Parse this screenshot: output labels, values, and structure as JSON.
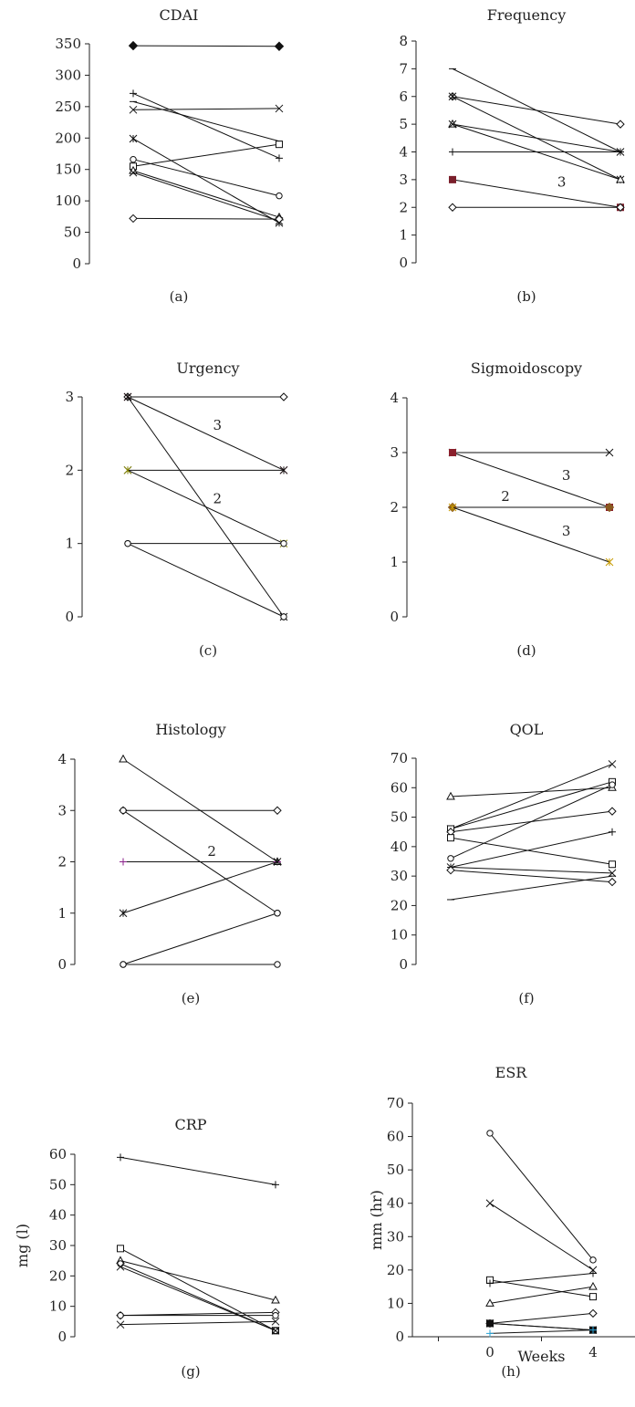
{
  "chart_data": [
    {
      "id": "a",
      "type": "line",
      "title": "CDAI",
      "caption": "(a)",
      "ylim": [
        0,
        350
      ],
      "yticks": [
        "0",
        "50",
        "100",
        "150",
        "200",
        "250",
        "300",
        "350"
      ],
      "x": [
        0,
        4
      ],
      "series": [
        {
          "marker": "diamond-filled",
          "values": [
            347,
            346
          ]
        },
        {
          "marker": "plus",
          "values": [
            271,
            168
          ]
        },
        {
          "marker": "x",
          "values": [
            245,
            247
          ]
        },
        {
          "marker": "dash",
          "values": [
            258,
            195
          ]
        },
        {
          "marker": "asterisk",
          "values": [
            199,
            65
          ]
        },
        {
          "marker": "circle",
          "values": [
            166,
            108
          ]
        },
        {
          "marker": "square",
          "values": [
            155,
            190
          ]
        },
        {
          "marker": "triangle",
          "values": [
            148,
            74
          ]
        },
        {
          "marker": "x",
          "values": [
            145,
            68
          ]
        },
        {
          "marker": "diamond",
          "values": [
            72,
            71
          ]
        }
      ]
    },
    {
      "id": "b",
      "type": "line",
      "title": "Frequency",
      "caption": "(b)",
      "ylim": [
        0,
        8
      ],
      "yticks": [
        "0",
        "1",
        "2",
        "3",
        "4",
        "5",
        "6",
        "7",
        "8"
      ],
      "x": [
        0,
        4
      ],
      "annotations": [
        {
          "text": "3",
          "x": 2.6,
          "y": 2.75
        }
      ],
      "series": [
        {
          "marker": "dash",
          "values": [
            7,
            4
          ]
        },
        {
          "marker": "diamond",
          "values": [
            6,
            5
          ]
        },
        {
          "marker": "asterisk",
          "values": [
            6,
            3
          ]
        },
        {
          "marker": "triangle",
          "values": [
            5,
            3
          ]
        },
        {
          "marker": "x",
          "values": [
            5,
            4
          ]
        },
        {
          "marker": "plus",
          "values": [
            4,
            4
          ]
        },
        {
          "marker": "square-filled",
          "color": "#7a1f2b",
          "values": [
            3,
            2
          ]
        },
        {
          "marker": "diamond",
          "values": [
            2,
            2
          ]
        }
      ]
    },
    {
      "id": "c",
      "type": "line",
      "title": "Urgency",
      "caption": "(c)",
      "ylim": [
        0,
        3
      ],
      "yticks": [
        "0",
        "1",
        "2",
        "3"
      ],
      "x": [
        0,
        4
      ],
      "annotations": [
        {
          "text": "3",
          "x": 2.3,
          "y": 2.55
        },
        {
          "text": "2",
          "x": 2.3,
          "y": 1.55
        }
      ],
      "series": [
        {
          "marker": "diamond",
          "values": [
            3,
            3
          ]
        },
        {
          "marker": "asterisk",
          "color": "#8a1f3b",
          "values": [
            3,
            2
          ]
        },
        {
          "marker": "asterisk",
          "values": [
            3,
            0
          ]
        },
        {
          "marker": "asterisk",
          "values": [
            2,
            2
          ]
        },
        {
          "marker": "asterisk",
          "color": "#8a8a00",
          "values": [
            2,
            1
          ]
        },
        {
          "marker": "circle",
          "values": [
            1,
            1
          ]
        },
        {
          "marker": "circle",
          "values": [
            1,
            0
          ]
        }
      ]
    },
    {
      "id": "d",
      "type": "line",
      "title": "Sigmoidoscopy",
      "caption": "(d)",
      "ylim": [
        0,
        4
      ],
      "yticks": [
        "0",
        "1",
        "2",
        "3",
        "4"
      ],
      "x": [
        0,
        4
      ],
      "annotations": [
        {
          "text": "3",
          "x": 2.9,
          "y": 2.5
        },
        {
          "text": "2",
          "x": 1.35,
          "y": 2.12
        },
        {
          "text": "3",
          "x": 2.9,
          "y": 1.48
        }
      ],
      "series": [
        {
          "marker": "x",
          "values": [
            3,
            3
          ]
        },
        {
          "marker": "square-filled",
          "color": "#8a1f2b",
          "values": [
            3,
            2
          ]
        },
        {
          "marker": "diamond-filled",
          "color": "#8a5a20",
          "values": [
            2,
            2
          ]
        },
        {
          "marker": "asterisk",
          "color": "#c79a00",
          "values": [
            2,
            1
          ]
        }
      ]
    },
    {
      "id": "e",
      "type": "line",
      "title": "Histology",
      "caption": "(e)",
      "ylim": [
        0,
        4
      ],
      "yticks": [
        "0",
        "1",
        "2",
        "3",
        "4"
      ],
      "x": [
        0,
        4
      ],
      "annotations": [
        {
          "text": "2",
          "x": 2.3,
          "y": 2.12
        }
      ],
      "series": [
        {
          "marker": "triangle",
          "values": [
            4,
            2
          ]
        },
        {
          "marker": "diamond",
          "values": [
            3,
            3
          ]
        },
        {
          "marker": "circle",
          "values": [
            3,
            1
          ]
        },
        {
          "marker": "plus",
          "color": "#8a1f8a",
          "values": [
            2,
            2
          ]
        },
        {
          "marker": "asterisk",
          "values": [
            1,
            2
          ]
        },
        {
          "marker": "circle",
          "values": [
            0,
            1
          ]
        },
        {
          "marker": "circle",
          "values": [
            0,
            0
          ]
        }
      ]
    },
    {
      "id": "f",
      "type": "line",
      "title": "QOL",
      "caption": "(f)",
      "ylim": [
        0,
        70
      ],
      "yticks": [
        "0",
        "10",
        "20",
        "30",
        "40",
        "50",
        "60",
        "70"
      ],
      "x": [
        0,
        4
      ],
      "series": [
        {
          "marker": "triangle",
          "values": [
            57,
            60
          ]
        },
        {
          "marker": "x",
          "values": [
            46,
            68
          ]
        },
        {
          "marker": "square",
          "values": [
            46,
            62
          ]
        },
        {
          "marker": "diamond",
          "values": [
            45,
            52
          ]
        },
        {
          "marker": "square",
          "values": [
            43,
            34
          ]
        },
        {
          "marker": "circle",
          "values": [
            36,
            61
          ]
        },
        {
          "marker": "plus",
          "values": [
            33,
            45
          ]
        },
        {
          "marker": "x",
          "values": [
            33,
            31
          ]
        },
        {
          "marker": "diamond",
          "values": [
            32,
            28
          ]
        },
        {
          "marker": "dash",
          "values": [
            22,
            30
          ]
        }
      ]
    },
    {
      "id": "g",
      "type": "line",
      "title": "CRP",
      "caption": "(g)",
      "ylabel": "mg (l)",
      "ylim": [
        0,
        60
      ],
      "yticks": [
        "0",
        "10",
        "20",
        "30",
        "40",
        "50",
        "60"
      ],
      "x": [
        0,
        4
      ],
      "series": [
        {
          "marker": "plus",
          "values": [
            59,
            50
          ]
        },
        {
          "marker": "square",
          "values": [
            29,
            2
          ]
        },
        {
          "marker": "triangle",
          "values": [
            25,
            12
          ]
        },
        {
          "marker": "circle",
          "values": [
            24,
            2
          ]
        },
        {
          "marker": "x",
          "values": [
            23,
            2
          ]
        },
        {
          "marker": "diamond",
          "values": [
            7,
            8
          ]
        },
        {
          "marker": "circle",
          "values": [
            7,
            7
          ]
        },
        {
          "marker": "x",
          "values": [
            4,
            5
          ]
        }
      ]
    },
    {
      "id": "h",
      "type": "line",
      "title": "ESR",
      "caption": "(h)",
      "ylabel": "mm (hr)",
      "xlabel": "Weeks",
      "ylim": [
        0,
        70
      ],
      "yticks": [
        "0",
        "10",
        "20",
        "30",
        "40",
        "50",
        "60",
        "70"
      ],
      "x": [
        0,
        4
      ],
      "xticks": [
        "0",
        "4"
      ],
      "series": [
        {
          "marker": "circle",
          "values": [
            61,
            23
          ]
        },
        {
          "marker": "x",
          "values": [
            40,
            20
          ]
        },
        {
          "marker": "square",
          "values": [
            17,
            12
          ]
        },
        {
          "marker": "plus",
          "values": [
            16,
            19
          ]
        },
        {
          "marker": "triangle",
          "values": [
            10,
            15
          ]
        },
        {
          "marker": "diamond",
          "values": [
            4,
            7
          ]
        },
        {
          "marker": "square-filled",
          "values": [
            4,
            2
          ]
        },
        {
          "marker": "asterisk",
          "values": [
            4,
            2
          ]
        },
        {
          "marker": "plus",
          "color": "#29a3d6",
          "values": [
            1,
            2
          ]
        }
      ]
    }
  ]
}
